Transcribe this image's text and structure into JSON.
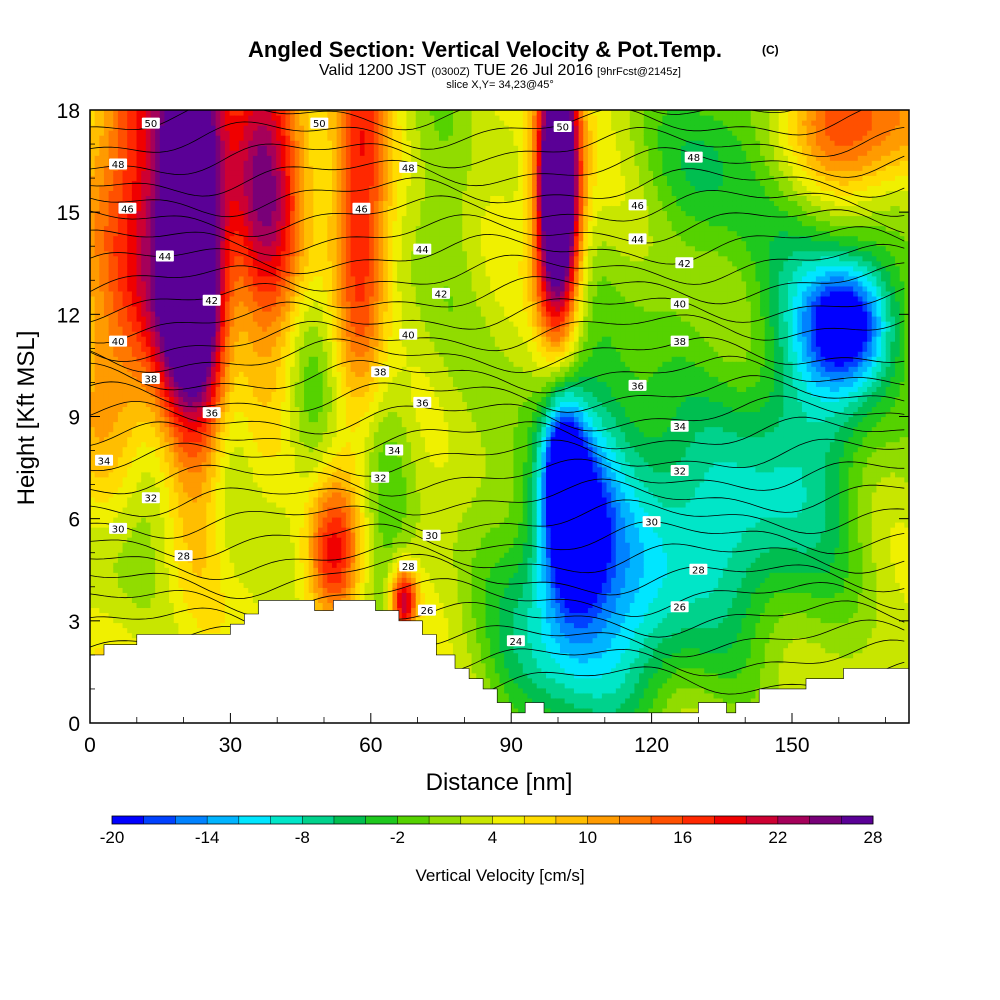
{
  "chart_data": {
    "type": "heatmap",
    "title": {
      "main": "Angled Section: Vertical Velocity & Pot.Temp.",
      "unit_tag": "(C)"
    },
    "subtitle": {
      "valid": "Valid 1200 JST",
      "utc": "(0300Z)",
      "date": "TUE 26 Jul 2016",
      "forecast": "[9hrFcst@2145z]"
    },
    "slice_note": "slice X,Y= 34,23@45°",
    "xlabel": "Distance [nm]",
    "ylabel": "Height [Kft MSL]",
    "xlim": [
      0,
      175
    ],
    "ylim": [
      0,
      18
    ],
    "x_ticks": [
      "0",
      "30",
      "60",
      "90",
      "120",
      "150"
    ],
    "x_tick_values": [
      0,
      30,
      60,
      90,
      120,
      150
    ],
    "y_ticks": [
      "0",
      "3",
      "6",
      "9",
      "12",
      "15",
      "18"
    ],
    "y_tick_values": [
      0,
      3,
      6,
      9,
      12,
      15,
      18
    ],
    "colorbar": {
      "label": "Vertical Velocity [cm/s]",
      "min": -20,
      "max": 28,
      "step": 2,
      "tick_labels": [
        "-20",
        "-14",
        "-8",
        "-2",
        "4",
        "10",
        "16",
        "22",
        "28"
      ],
      "tick_values": [
        -20,
        -14,
        -8,
        -2,
        4,
        10,
        16,
        22,
        28
      ],
      "colors": [
        "#0000ff",
        "#0041ff",
        "#0082ff",
        "#00b4ff",
        "#00e6ff",
        "#00e6c8",
        "#00d28c",
        "#00be50",
        "#1ec81e",
        "#55d200",
        "#91dc00",
        "#c8e600",
        "#f0f000",
        "#ffdc00",
        "#ffbe00",
        "#ff9b00",
        "#ff7800",
        "#ff5000",
        "#ff2800",
        "#f00000",
        "#cd0032",
        "#a5005a",
        "#780078",
        "#5a0096"
      ]
    },
    "velocity_features": [
      {
        "x": 22,
        "z": 16.5,
        "w": 24,
        "sx": 5,
        "sz": 5
      },
      {
        "x": 22,
        "z": 12.5,
        "w": 16,
        "sx": 5,
        "sz": 2.5
      },
      {
        "x": 10,
        "z": 14,
        "w": 14,
        "sx": 8,
        "sz": 7
      },
      {
        "x": 37,
        "z": 16,
        "w": 14,
        "sx": 5,
        "sz": 3
      },
      {
        "x": 40,
        "z": 15,
        "w": 6,
        "sx": 10,
        "sz": 5
      },
      {
        "x": 58,
        "z": 14.5,
        "w": 14,
        "sx": 4,
        "sz": 5
      },
      {
        "x": 100,
        "z": 16.5,
        "w": 30,
        "sx": 3,
        "sz": 2.5
      },
      {
        "x": 100,
        "z": 14,
        "w": 18,
        "sx": 3.5,
        "sz": 2.5
      },
      {
        "x": 162,
        "z": 17.5,
        "w": 14,
        "sx": 12,
        "sz": 1.5
      },
      {
        "x": 52,
        "z": 5,
        "w": 14,
        "sx": 4,
        "sz": 1.5
      },
      {
        "x": 67,
        "z": 3.6,
        "w": 20,
        "sx": 2,
        "sz": 0.7
      },
      {
        "x": 135,
        "z": 17,
        "w": -8,
        "sx": 10,
        "sz": 2
      },
      {
        "x": 150,
        "z": 15,
        "w": -3,
        "sx": 15,
        "sz": 3
      },
      {
        "x": 75,
        "z": 16,
        "w": -3,
        "sx": 6,
        "sz": 4
      },
      {
        "x": 47,
        "z": 10,
        "w": -8,
        "sx": 4,
        "sz": 3
      },
      {
        "x": 30,
        "z": 10,
        "w": -4,
        "sx": 3,
        "sz": 4
      },
      {
        "x": 13,
        "z": 7,
        "w": -8,
        "sx": 5,
        "sz": 2.5
      },
      {
        "x": 62,
        "z": 7,
        "w": -6,
        "sx": 5,
        "sz": 4
      },
      {
        "x": 103,
        "z": 5.5,
        "w": -18,
        "sx": 5,
        "sz": 1.8
      },
      {
        "x": 101,
        "z": 7.8,
        "w": -16,
        "sx": 3,
        "sz": 1.5
      },
      {
        "x": 108,
        "z": 8,
        "w": -8,
        "sx": 12,
        "sz": 4
      },
      {
        "x": 128,
        "z": 5.5,
        "w": -10,
        "sx": 20,
        "sz": 2.5
      },
      {
        "x": 105,
        "z": 2,
        "w": -10,
        "sx": 15,
        "sz": 2
      },
      {
        "x": 162,
        "z": 11.8,
        "w": -16,
        "sx": 6,
        "sz": 1.2
      },
      {
        "x": 160,
        "z": 11.5,
        "w": -10,
        "sx": 10,
        "sz": 2.5
      },
      {
        "x": 148,
        "z": 7.5,
        "w": -6,
        "sx": 12,
        "sz": 3
      },
      {
        "x": 5,
        "z": 5,
        "w": -5,
        "sx": 6,
        "sz": 2
      }
    ],
    "velocity_background": 4,
    "theta_labels": [
      {
        "x": 13,
        "z": 17.6,
        "text": "50"
      },
      {
        "x": 49,
        "z": 17.6,
        "text": "50"
      },
      {
        "x": 101,
        "z": 17.5,
        "text": "50"
      },
      {
        "x": 6,
        "z": 16.4,
        "text": "48"
      },
      {
        "x": 68,
        "z": 16.3,
        "text": "48"
      },
      {
        "x": 129,
        "z": 16.6,
        "text": "48"
      },
      {
        "x": 8,
        "z": 15.1,
        "text": "46"
      },
      {
        "x": 58,
        "z": 15.1,
        "text": "46"
      },
      {
        "x": 117,
        "z": 15.2,
        "text": "46"
      },
      {
        "x": 16,
        "z": 13.7,
        "text": "44"
      },
      {
        "x": 71,
        "z": 13.9,
        "text": "44"
      },
      {
        "x": 117,
        "z": 14.2,
        "text": "44"
      },
      {
        "x": 26,
        "z": 12.4,
        "text": "42"
      },
      {
        "x": 75,
        "z": 12.6,
        "text": "42"
      },
      {
        "x": 127,
        "z": 13.5,
        "text": "42"
      },
      {
        "x": 6,
        "z": 11.2,
        "text": "40"
      },
      {
        "x": 68,
        "z": 11.4,
        "text": "40"
      },
      {
        "x": 126,
        "z": 12.3,
        "text": "40"
      },
      {
        "x": 13,
        "z": 10.1,
        "text": "38"
      },
      {
        "x": 62,
        "z": 10.3,
        "text": "38"
      },
      {
        "x": 126,
        "z": 11.2,
        "text": "38"
      },
      {
        "x": 26,
        "z": 9.1,
        "text": "36"
      },
      {
        "x": 71,
        "z": 9.4,
        "text": "36"
      },
      {
        "x": 117,
        "z": 9.9,
        "text": "36"
      },
      {
        "x": 3,
        "z": 7.7,
        "text": "34"
      },
      {
        "x": 65,
        "z": 8.0,
        "text": "34"
      },
      {
        "x": 126,
        "z": 8.7,
        "text": "34"
      },
      {
        "x": 13,
        "z": 6.6,
        "text": "32"
      },
      {
        "x": 62,
        "z": 7.2,
        "text": "32"
      },
      {
        "x": 126,
        "z": 7.4,
        "text": "32"
      },
      {
        "x": 6,
        "z": 5.7,
        "text": "30"
      },
      {
        "x": 73,
        "z": 5.5,
        "text": "30"
      },
      {
        "x": 120,
        "z": 5.9,
        "text": "30"
      },
      {
        "x": 20,
        "z": 4.9,
        "text": "28"
      },
      {
        "x": 68,
        "z": 4.6,
        "text": "28"
      },
      {
        "x": 130,
        "z": 4.5,
        "text": "28"
      },
      {
        "x": 72,
        "z": 3.3,
        "text": "26"
      },
      {
        "x": 126,
        "z": 3.4,
        "text": "26"
      },
      {
        "x": 91,
        "z": 2.4,
        "text": "24"
      }
    ],
    "terrain": [
      [
        0,
        2.0
      ],
      [
        3,
        2.0
      ],
      [
        3,
        2.3
      ],
      [
        10,
        2.3
      ],
      [
        10,
        2.6
      ],
      [
        30,
        2.6
      ],
      [
        30,
        2.9
      ],
      [
        33,
        2.9
      ],
      [
        33,
        3.2
      ],
      [
        36,
        3.2
      ],
      [
        36,
        3.6
      ],
      [
        48,
        3.6
      ],
      [
        48,
        3.3
      ],
      [
        52,
        3.3
      ],
      [
        52,
        3.6
      ],
      [
        61,
        3.6
      ],
      [
        61,
        3.3
      ],
      [
        66,
        3.3
      ],
      [
        66,
        3.0
      ],
      [
        71,
        3.0
      ],
      [
        71,
        2.6
      ],
      [
        74,
        2.6
      ],
      [
        74,
        2.0
      ],
      [
        78,
        2.0
      ],
      [
        78,
        1.6
      ],
      [
        81,
        1.6
      ],
      [
        81,
        1.3
      ],
      [
        84,
        1.3
      ],
      [
        84,
        1.0
      ],
      [
        87,
        1.0
      ],
      [
        87,
        0.6
      ],
      [
        90,
        0.6
      ],
      [
        90,
        0.3
      ],
      [
        93,
        0.3
      ],
      [
        93,
        0.6
      ],
      [
        97,
        0.6
      ],
      [
        97,
        0.3
      ],
      [
        130,
        0.3
      ],
      [
        130,
        0.6
      ],
      [
        136,
        0.6
      ],
      [
        136,
        0.3
      ],
      [
        138,
        0.3
      ],
      [
        138,
        0.6
      ],
      [
        143,
        0.6
      ],
      [
        143,
        1.0
      ],
      [
        153,
        1.0
      ],
      [
        153,
        1.3
      ],
      [
        161,
        1.3
      ],
      [
        161,
        1.6
      ],
      [
        175,
        1.6
      ]
    ]
  }
}
